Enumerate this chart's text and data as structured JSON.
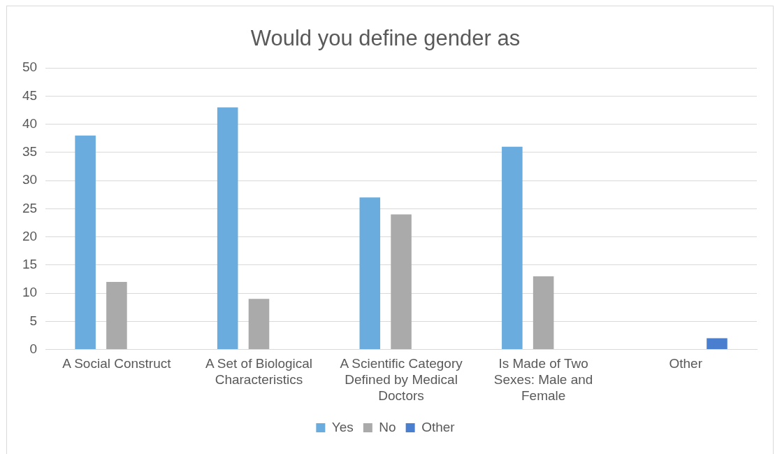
{
  "chart_data": {
    "type": "bar",
    "title": "Would you define gender as",
    "categories": [
      "A Social Construct",
      "A Set of Biological Characteristics",
      "A Scientific Category Defined by Medical Doctors",
      "Is Made of Two Sexes: Male and Female",
      "Other"
    ],
    "series": [
      {
        "name": "Yes",
        "color": "#6aacdd",
        "values": [
          38,
          43,
          27,
          36,
          null
        ]
      },
      {
        "name": "No",
        "color": "#aaaaaa",
        "values": [
          12,
          9,
          24,
          13,
          null
        ]
      },
      {
        "name": "Other",
        "color": "#4a7fd0",
        "values": [
          null,
          null,
          null,
          null,
          2
        ]
      }
    ],
    "ylim": [
      0,
      50
    ],
    "yticks": [
      0,
      5,
      10,
      15,
      20,
      25,
      30,
      35,
      40,
      45,
      50
    ],
    "grid": "y",
    "legend": "bottom"
  }
}
